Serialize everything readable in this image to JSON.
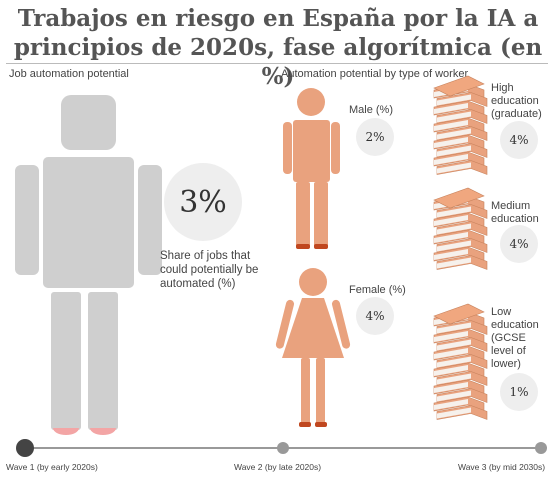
{
  "title_line1": "Trabajos en riesgo en España por la IA a",
  "title_line2": "principios de 2020s,  fase algorítmica (en %)",
  "left_heading": "Job automation potential",
  "right_heading": "Automation potential by type of worker",
  "overall": {
    "value_label": "3%",
    "caption_line1": "Share of jobs that",
    "caption_line2": "could potentially be",
    "caption_line3": "automated (%)"
  },
  "gender": [
    {
      "label": "Male (%)",
      "value_label": "2%"
    },
    {
      "label": "Female (%)",
      "value_label": "4%"
    }
  ],
  "education": [
    {
      "lines": [
        "High",
        "education",
        "(graduate)"
      ],
      "value_label": "4%"
    },
    {
      "lines": [
        "Medium",
        "education"
      ],
      "value_label": "4%"
    },
    {
      "lines": [
        "Low",
        "education (GCSE",
        "level of",
        "lower)"
      ],
      "value_label": "1%"
    }
  ],
  "timeline": [
    {
      "label": "Wave 1 (by early 2020s)",
      "active": true
    },
    {
      "label": "Wave 2 (by late 2020s)",
      "active": false
    },
    {
      "label": "Wave 3 (by mid 2030s)",
      "active": false
    }
  ],
  "colors": {
    "figure_gray": "#cfcfcf",
    "figure_orange": "#e9a27e",
    "feet_pink": "#f3a5a5",
    "feet_red": "#c0471f",
    "bubble": "#eeeeee",
    "timeline_line": "#999999",
    "active_dot": "#444444"
  },
  "chart_data": {
    "type": "table",
    "title": "Trabajos en riesgo en España por la IA a principios de 2020s,  fase algorítmica (en %)",
    "overall": {
      "label": "Share of jobs that could potentially be automated (%)",
      "value": 3
    },
    "categories": [
      "Male (%)",
      "Female (%)",
      "High education (graduate)",
      "Medium education",
      "Low education (GCSE level of lower)"
    ],
    "values": [
      2,
      4,
      4,
      4,
      1
    ],
    "phase": "Wave 1 (by early 2020s)"
  }
}
